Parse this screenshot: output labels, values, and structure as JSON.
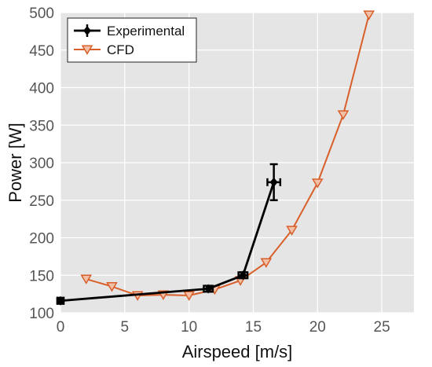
{
  "chart_data": {
    "type": "line",
    "title": "",
    "xlabel": "Airspeed [m/s]",
    "ylabel": "Power [W]",
    "xlim": [
      0,
      27.5
    ],
    "ylim": [
      100,
      500
    ],
    "xticks": [
      0,
      5,
      10,
      15,
      20,
      25
    ],
    "yticks": [
      100,
      150,
      200,
      250,
      300,
      350,
      400,
      450,
      500
    ],
    "grid": true,
    "background": "#e5e5e5",
    "legend_position": "top-left",
    "series": [
      {
        "name": "Experimental",
        "color": "#000000",
        "marker": "diamond-errorbar",
        "x": [
          0,
          11.5,
          14.2,
          16.6
        ],
        "y": [
          116,
          132,
          150,
          274
        ],
        "xerr": [
          0.25,
          0.35,
          0.35,
          0.5
        ],
        "yerr": [
          4,
          4,
          4,
          24
        ]
      },
      {
        "name": "CFD",
        "color": "#d95f2a",
        "marker": "triangle-down",
        "x": [
          2,
          4,
          6,
          8,
          10,
          12,
          14,
          16,
          18,
          20,
          22,
          24
        ],
        "y": [
          145,
          135,
          123,
          124,
          123,
          131,
          143,
          167,
          210,
          273,
          364,
          497
        ]
      }
    ]
  }
}
